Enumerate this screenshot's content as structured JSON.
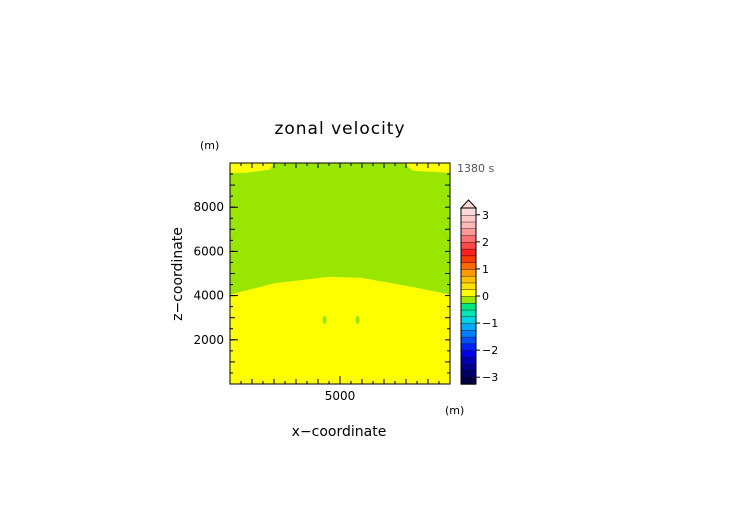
{
  "chart_data": {
    "type": "heatmap",
    "title": "zonal velocity",
    "xlabel": "x−coordinate",
    "ylabel": "z−coordinate",
    "x_unit": "(m)",
    "y_unit": "(m)",
    "time_label": "1380 s",
    "xlim": [
      0,
      10000
    ],
    "ylim": [
      0,
      10000
    ],
    "x_ticks": [
      5000
    ],
    "x_tick_labels": [
      "5000"
    ],
    "y_ticks": [
      2000,
      4000,
      6000,
      8000
    ],
    "y_tick_labels": [
      "2000",
      "4000",
      "6000",
      "8000"
    ],
    "regions": [
      {
        "name": "lower",
        "value": 0.0,
        "color": "#ffff00",
        "top_z": [
          [
            0,
            4050
          ],
          [
            2000,
            4550
          ],
          [
            4500,
            4850
          ],
          [
            6000,
            4800
          ],
          [
            8000,
            4450
          ],
          [
            10000,
            4050
          ]
        ]
      },
      {
        "name": "middle",
        "value": -0.2,
        "color": "#99e600"
      },
      {
        "name": "top_left_patch",
        "value": 0.0,
        "color": "#ffff00",
        "poly": [
          [
            0,
            10000
          ],
          [
            0,
            9550
          ],
          [
            700,
            9550
          ],
          [
            1800,
            9700
          ],
          [
            2000,
            10000
          ]
        ]
      },
      {
        "name": "top_right_patch",
        "value": 0.0,
        "color": "#ffff00",
        "poly": [
          [
            7900,
            10000
          ],
          [
            8300,
            9650
          ],
          [
            10000,
            9550
          ],
          [
            10000,
            10000
          ]
        ]
      }
    ],
    "spots": [
      {
        "x": 4300,
        "z": 2900,
        "color": "#99e600"
      },
      {
        "x": 5800,
        "z": 2900,
        "color": "#99e600"
      }
    ],
    "colorbar": {
      "range": [
        -3.25,
        3.25
      ],
      "extend_top": true,
      "tick_values": [
        3,
        2,
        1,
        0,
        -1,
        -2,
        -3
      ],
      "tick_labels": [
        "3",
        "2",
        "1",
        "0",
        "−1",
        "−2",
        "−3"
      ],
      "colors": [
        "#000040",
        "#000066",
        "#00008c",
        "#0000b3",
        "#0000e6",
        "#0022ff",
        "#0050ff",
        "#0080ff",
        "#00aaff",
        "#00d2e6",
        "#00e6b4",
        "#00e680",
        "#99e600",
        "#ffff00",
        "#ffe000",
        "#ffc000",
        "#ff9a00",
        "#ff6a00",
        "#ff3a00",
        "#ff2020",
        "#ff4a4a",
        "#ff7070",
        "#ff9999",
        "#ffb8b8",
        "#ffc8c8",
        "#ffd8d8"
      ]
    }
  }
}
